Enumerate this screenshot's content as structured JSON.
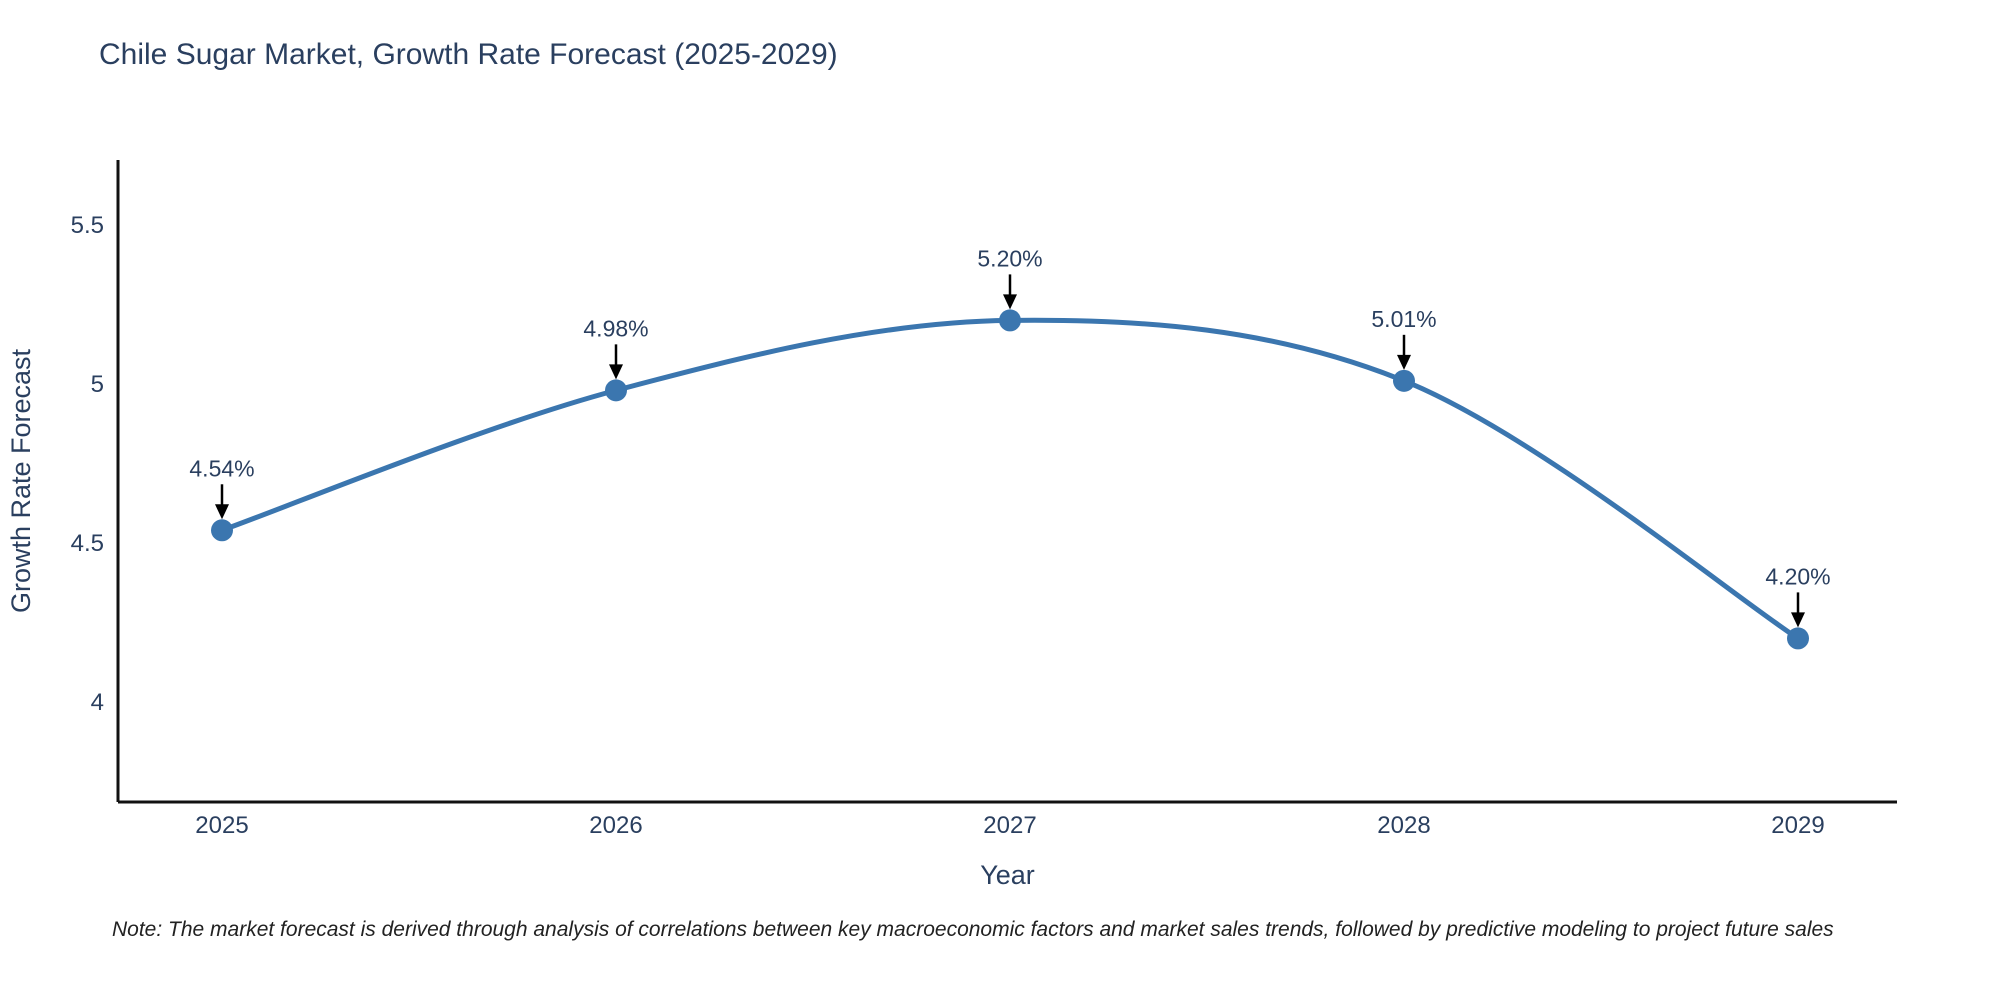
{
  "title": "Chile Sugar Market, Growth Rate Forecast (2025-2029)",
  "note": "Note: The market forecast is derived through analysis of correlations between key macroeconomic factors and market sales trends, followed by predictive modeling to project future sales",
  "chart_data": {
    "type": "line",
    "title": "Chile Sugar Market, Growth Rate Forecast (2025-2029)",
    "xlabel": "Year",
    "ylabel": "Growth Rate Forecast",
    "categories": [
      "2025",
      "2026",
      "2027",
      "2028",
      "2029"
    ],
    "values": [
      4.54,
      4.98,
      5.2,
      5.01,
      4.2
    ],
    "point_labels": [
      "4.54%",
      "4.98%",
      "5.20%",
      "5.01%",
      "4.20%"
    ],
    "ytick_labels": [
      "5.5",
      "5",
      "4.5",
      "4"
    ],
    "ytick_values": [
      5.5,
      5.0,
      4.5,
      4.0
    ],
    "ylim": [
      3.69,
      5.7
    ],
    "grid": false,
    "legend": "none",
    "smooth": true,
    "colors": {
      "line": "#3b76af",
      "marker": "#3b76af",
      "axis": "#111111",
      "text": "#2a3f5f",
      "annotation_arrow": "#000000",
      "note_text": "#222222"
    }
  }
}
